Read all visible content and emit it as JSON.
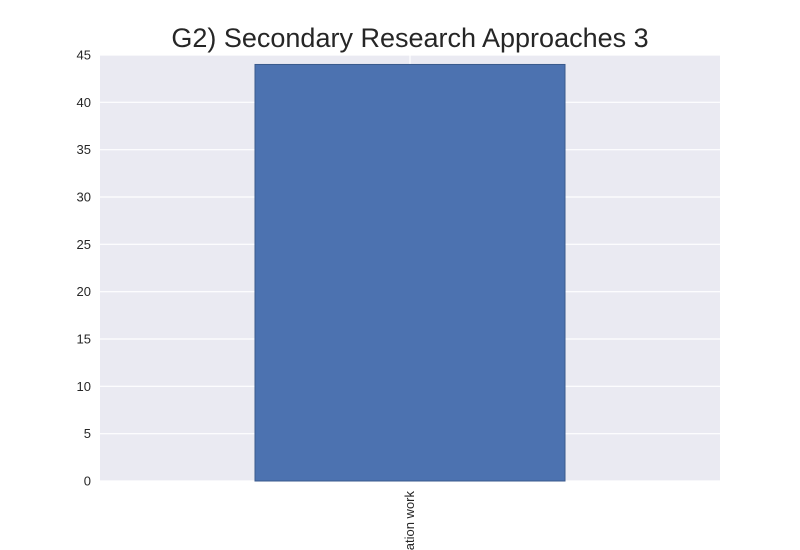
{
  "chart_data": {
    "type": "bar",
    "title": "G2) Secondary Research Approaches 3",
    "xlabel": "",
    "ylabel": "",
    "categories": [
      "ation work"
    ],
    "values": [
      44
    ],
    "ylim": [
      0,
      45
    ],
    "yticks": [
      0,
      5,
      10,
      15,
      20,
      25,
      30,
      35,
      40,
      45
    ],
    "grid": true,
    "colors": {
      "bar": "#4c72b0",
      "bar_edge": "#3a5a8c",
      "plot_bg": "#eaeaf2",
      "grid": "#ffffff"
    }
  }
}
